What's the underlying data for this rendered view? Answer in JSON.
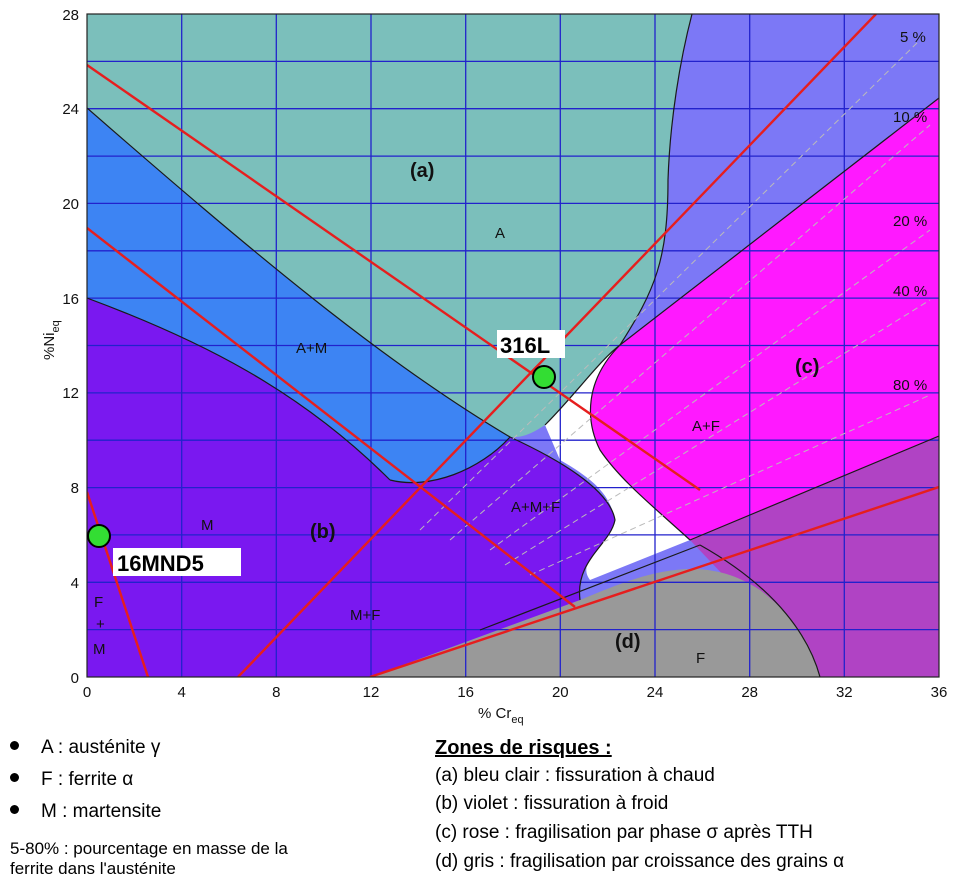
{
  "chart_data": {
    "type": "phase-diagram",
    "xlabel_main": "% Cr",
    "xlabel_sub": "eq",
    "ylabel_main": "%Ni",
    "ylabel_sub": "eq",
    "xlim": [
      0,
      36
    ],
    "ylim": [
      0,
      28
    ],
    "xticks": [
      "0",
      "4",
      "8",
      "12",
      "16",
      "20",
      "24",
      "28",
      "32",
      "36"
    ],
    "yticks": [
      "0",
      "4",
      "8",
      "12",
      "16",
      "20",
      "24",
      "28"
    ],
    "grid": true,
    "zone_labels": [
      "(a)",
      "(b)",
      "(c)",
      "(d)"
    ],
    "phase_labels": [
      "A",
      "A+M",
      "M",
      "M+F",
      "A+M+F",
      "A+F",
      "F",
      "F",
      "+",
      "M"
    ],
    "ferrite_lines": [
      "5 %",
      "10 %",
      "20 %",
      "40 %",
      "80 %"
    ],
    "points": [
      {
        "label": "316L",
        "x": 19.2,
        "y": 12.6
      },
      {
        "label": "16MND5",
        "x": 0.6,
        "y": 6.0
      }
    ],
    "colors": {
      "zone_a": "#7bbfbb",
      "zone_am": "#3d84f3",
      "zone_b": "#7a18f0",
      "zone_c": "#ff19ff",
      "zone_upper_right": "#7c78f6",
      "zone_lower_right": "#b043c4",
      "zone_d": "#999999",
      "grid": "#2222cc",
      "red_lines": "#e61e1e",
      "points": "#33dd33"
    }
  },
  "legend_left": {
    "items": [
      "A : austénite γ",
      "F : ferrite α",
      "M : martensite"
    ],
    "note_line1": "5-80% : pourcentage en masse de la",
    "note_line2": "ferrite dans l'austénite"
  },
  "legend_right": {
    "title": "Zones de risques :",
    "items": [
      "(a) bleu clair : fissuration à chaud",
      "(b) violet : fissuration à froid",
      "(c) rose : fragilisation par phase σ après TTH",
      "(d) gris : fragilisation par croissance des grains α"
    ]
  }
}
